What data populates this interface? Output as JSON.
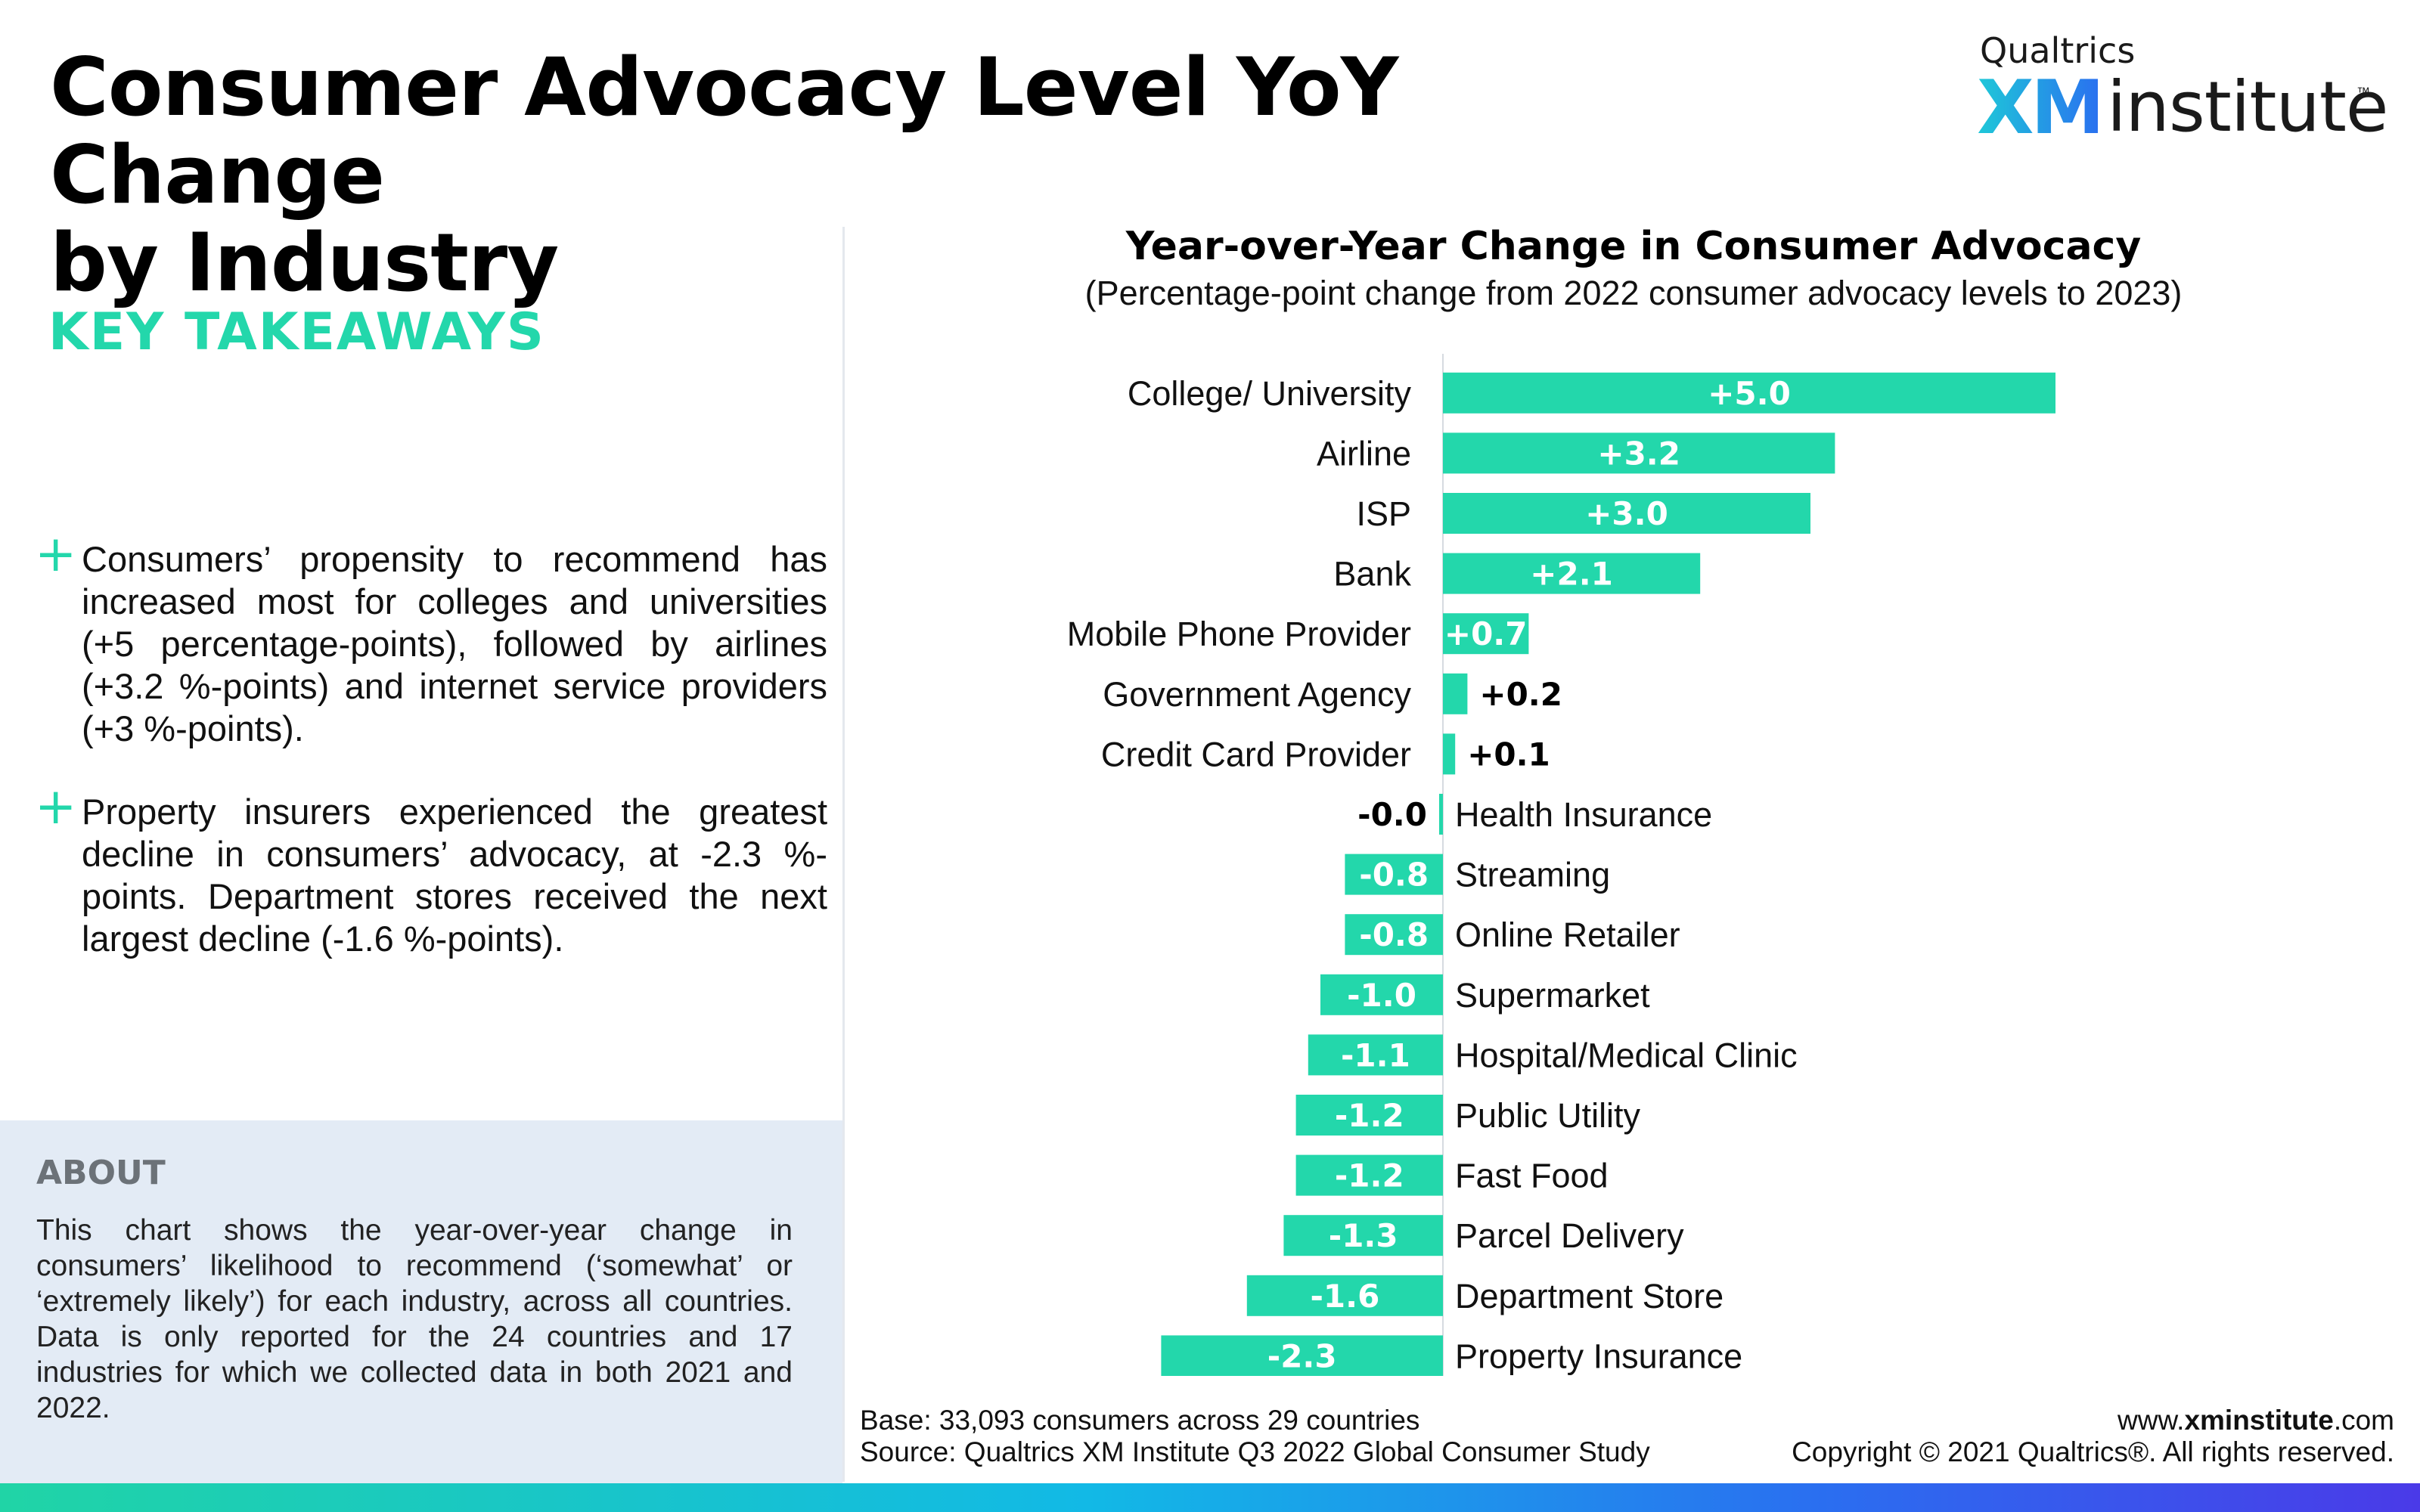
{
  "page": {
    "title_line1": "Consumer Advocacy Level YoY Change",
    "title_line2": "by Industry"
  },
  "logo": {
    "brand": "Qualtrics",
    "xm": "XM",
    "institute": "institute",
    "tm": "™"
  },
  "takeaways": {
    "heading": "KEY TAKEAWAYS",
    "items": [
      "Consumers’ propensity to recommend has increased most for colleges and universities (+5 percentage-points), followed by airlines (+3.2 %-points) and internet service providers (+3 %-points).",
      "Property insurers experienced the greatest decline in consumers’ advocacy, at -2.3 %-points. Department stores received the next largest decline (-1.6 %-points)."
    ]
  },
  "about": {
    "heading": "ABOUT",
    "text": "This chart shows the year-over-year change in consumers’ likelihood to recommend (‘somewhat’ or ‘extremely likely’) for each industry, across all countries. Data is only reported for the 24 countries and 17 industries for which we collected data in both 2021 and 2022."
  },
  "chart_data": {
    "type": "bar",
    "orientation": "horizontal",
    "title": "Year-over-Year Change in Consumer Advocacy",
    "subtitle": "(Percentage-point change from 2022 consumer advocacy levels to 2023)",
    "categories": [
      "College/ University",
      "Airline",
      "ISP",
      "Bank",
      "Mobile Phone Provider",
      "Government Agency",
      "Credit Card Provider",
      "Health Insurance",
      "Streaming",
      "Online Retailer",
      "Supermarket",
      "Hospital/Medical Clinic",
      "Public Utility",
      "Fast Food",
      "Parcel Delivery",
      "Department Store",
      "Property Insurance"
    ],
    "values": [
      5.0,
      3.2,
      3.0,
      2.1,
      0.7,
      0.2,
      0.1,
      -0.02,
      -0.8,
      -0.8,
      -1.0,
      -1.1,
      -1.2,
      -1.2,
      -1.3,
      -1.6,
      -2.3
    ],
    "labels": [
      "+5.0",
      "+3.2",
      "+3.0",
      "+2.1",
      "+0.7",
      "+0.2",
      "+0.1",
      "-0.0",
      "-0.8",
      "-0.8",
      "-1.0",
      "-1.1",
      "-1.2",
      "-1.2",
      "-1.3",
      "-1.6",
      "-2.3"
    ],
    "bar_color": "#23d7ab",
    "xlim": [
      -2.3,
      5.0
    ],
    "grid": false,
    "legend": "none"
  },
  "footer": {
    "base": "Base: 33,093 consumers across 29 countries",
    "source": "Source: Qualtrics XM Institute Q3 2022 Global Consumer Study",
    "site_prefix": "www.",
    "site_bold": "xminstitute",
    "site_suffix": ".com",
    "copyright": "Copyright © 2021 Qualtrics®. All rights reserved."
  }
}
